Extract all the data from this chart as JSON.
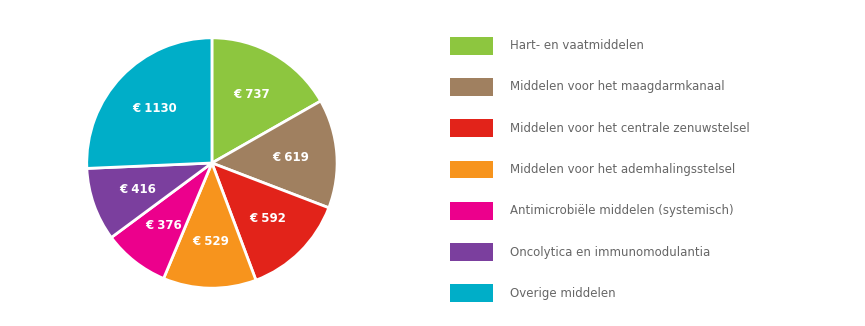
{
  "labels": [
    "Hart- en vaatmiddelen",
    "Middelen voor het maagdarmkanaal",
    "Middelen voor het centrale zenuwstelsel",
    "Middelen voor het ademhalingsstelsel",
    "Antimicrobiële middelen (systemisch)",
    "Oncolytica en immunomodulantia",
    "Overige middelen"
  ],
  "values": [
    737,
    619,
    592,
    529,
    376,
    416,
    1130
  ],
  "colors": [
    "#8dc63f",
    "#a08060",
    "#e2231a",
    "#f7941d",
    "#ec008c",
    "#7b3f9e",
    "#00aec8"
  ],
  "labels_in_pie": [
    "€ 737",
    "€ 619",
    "€ 592",
    "€ 529",
    "€ 376",
    "€ 416",
    "€ 1130"
  ],
  "background_color": "#ffffff",
  "text_color": "#ffffff",
  "legend_text_color": "#666666",
  "font_size_pie": 8.5,
  "font_size_legend": 8.5,
  "start_angle": 90
}
